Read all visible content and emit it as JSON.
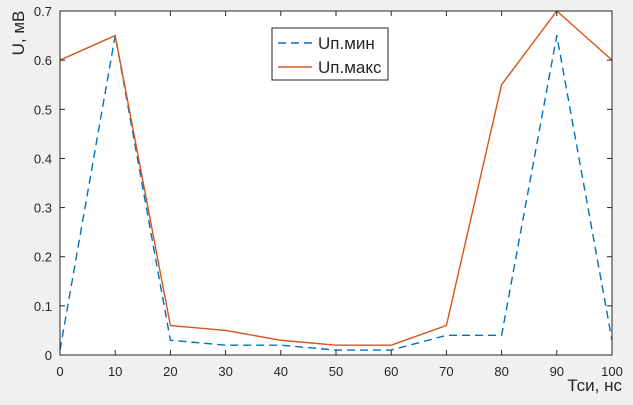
{
  "chart_data": {
    "type": "line",
    "xlabel": "Тси, нс",
    "ylabel": "U, мВ",
    "xlim": [
      0,
      100
    ],
    "ylim": [
      0,
      0.7
    ],
    "xticks": [
      0,
      10,
      20,
      30,
      40,
      50,
      60,
      70,
      80,
      90,
      100
    ],
    "yticks": [
      0,
      0.1,
      0.2,
      0.3,
      0.4,
      0.5,
      0.6,
      0.7
    ],
    "ytick_labels": [
      "0",
      "0.1",
      "0.2",
      "0.3",
      "0.4",
      "0.5",
      "0.6",
      "0.7"
    ],
    "grid": false,
    "legend_position": "top-center",
    "x": [
      0,
      10,
      20,
      30,
      40,
      50,
      60,
      70,
      80,
      90,
      100
    ],
    "series": [
      {
        "name": "Uп.мин",
        "color": "#0072BD",
        "line_style": "dashed",
        "values": [
          0.01,
          0.65,
          0.03,
          0.02,
          0.02,
          0.01,
          0.01,
          0.04,
          0.04,
          0.65,
          0.03
        ]
      },
      {
        "name": "Uп.макс",
        "color": "#D95319",
        "line_style": "solid",
        "values": [
          0.6,
          0.65,
          0.06,
          0.05,
          0.03,
          0.02,
          0.02,
          0.06,
          0.55,
          0.7,
          0.6
        ]
      }
    ]
  }
}
